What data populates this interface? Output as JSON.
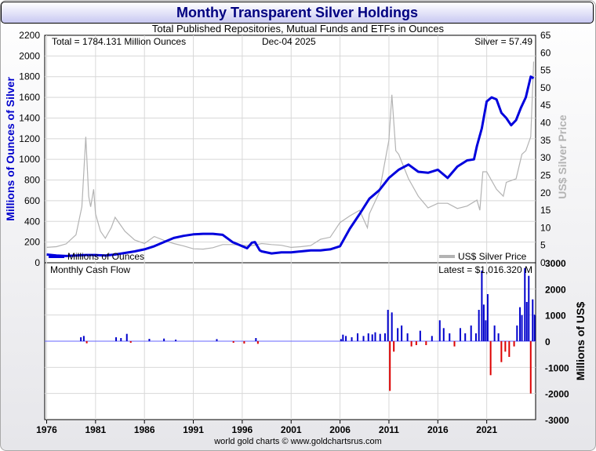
{
  "title": "Monthy Transparent Silver Holdings",
  "subtitle": "Total Published Repositories, Mutual Funds and ETFs in Ounces",
  "footer": "world gold charts © www.goldchartsrus.com",
  "top_panel": {
    "total_label": "Total = 1784.131 Million Ounces",
    "date_label": "Dec-04  2025",
    "price_label": "Silver = 57.49",
    "left_axis_label": "Millions of Ounces of Silver",
    "right_axis_label": "US$ Silver Price",
    "legend_holdings": "Millions of Ounces",
    "legend_price": "US$ Silver Price"
  },
  "bottom_panel": {
    "title": "Monthly Cash Flow",
    "latest_label": "Latest = $1,016.320 M",
    "right_axis_label": "Millions of US$"
  },
  "colors": {
    "holdings": "#0000dd",
    "price": "#b3b3b3",
    "inflow": "#0000cc",
    "outflow": "#dd0000",
    "title": "#000080"
  },
  "chart_data": [
    {
      "type": "line",
      "x_ticks": [
        "1976",
        "1981",
        "1986",
        "1991",
        "1996",
        "2001",
        "2006",
        "2011",
        "2016",
        "2021"
      ],
      "y_left_ticks": [
        0,
        200,
        400,
        600,
        800,
        1000,
        1200,
        1400,
        1600,
        1800,
        2000,
        2200
      ],
      "y_right_ticks": [
        0,
        5,
        10,
        15,
        20,
        25,
        30,
        35,
        40,
        45,
        50,
        55,
        60,
        65
      ],
      "ylim_left": [
        0,
        2200
      ],
      "ylim_right": [
        0,
        65
      ],
      "xlim": [
        1975.8,
        2026.0
      ],
      "series": [
        {
          "name": "Millions of Ounces",
          "axis": "left",
          "points": [
            [
              1976,
              80
            ],
            [
              1977,
              70
            ],
            [
              1978,
              65
            ],
            [
              1979,
              70
            ],
            [
              1980,
              75
            ],
            [
              1981,
              75
            ],
            [
              1982,
              70
            ],
            [
              1983,
              80
            ],
            [
              1984,
              95
            ],
            [
              1985,
              110
            ],
            [
              1986,
              130
            ],
            [
              1987,
              160
            ],
            [
              1988,
              200
            ],
            [
              1989,
              240
            ],
            [
              1990,
              260
            ],
            [
              1991,
              275
            ],
            [
              1992,
              280
            ],
            [
              1993,
              280
            ],
            [
              1994,
              270
            ],
            [
              1995,
              200
            ],
            [
              1995.5,
              180
            ],
            [
              1996,
              160
            ],
            [
              1996.5,
              140
            ],
            [
              1997,
              195
            ],
            [
              1997.3,
              200
            ],
            [
              1997.8,
              120
            ],
            [
              1998,
              110
            ],
            [
              1999,
              90
            ],
            [
              2000,
              100
            ],
            [
              2001,
              100
            ],
            [
              2002,
              110
            ],
            [
              2003,
              120
            ],
            [
              2004,
              120
            ],
            [
              2004.5,
              125
            ],
            [
              2005,
              130
            ],
            [
              2006,
              160
            ],
            [
              2007,
              330
            ],
            [
              2008,
              470
            ],
            [
              2009,
              620
            ],
            [
              2010,
              700
            ],
            [
              2011,
              820
            ],
            [
              2012,
              900
            ],
            [
              2013,
              950
            ],
            [
              2014,
              880
            ],
            [
              2015,
              870
            ],
            [
              2016,
              900
            ],
            [
              2017,
              820
            ],
            [
              2018,
              930
            ],
            [
              2019,
              990
            ],
            [
              2019.7,
              1000
            ],
            [
              2020,
              1130
            ],
            [
              2020.5,
              1300
            ],
            [
              2021,
              1560
            ],
            [
              2021.5,
              1600
            ],
            [
              2022,
              1580
            ],
            [
              2022.5,
              1450
            ],
            [
              2023,
              1400
            ],
            [
              2023.5,
              1330
            ],
            [
              2024,
              1380
            ],
            [
              2024.5,
              1500
            ],
            [
              2025,
              1600
            ],
            [
              2025.5,
              1800
            ],
            [
              2025.8,
              1784
            ]
          ]
        },
        {
          "name": "US$ Silver Price",
          "axis": "right",
          "points": [
            [
              1976,
              4.4
            ],
            [
              1977,
              4.6
            ],
            [
              1978,
              5.4
            ],
            [
              1979,
              8.0
            ],
            [
              1979.6,
              16
            ],
            [
              1980.0,
              36
            ],
            [
              1980.3,
              19
            ],
            [
              1980.5,
              16
            ],
            [
              1980.8,
              21
            ],
            [
              1981,
              14
            ],
            [
              1981.5,
              9
            ],
            [
              1982,
              7
            ],
            [
              1982.6,
              10
            ],
            [
              1983,
              13
            ],
            [
              1983.5,
              11
            ],
            [
              1984,
              9
            ],
            [
              1985,
              6.5
            ],
            [
              1986,
              5.5
            ],
            [
              1987,
              7.5
            ],
            [
              1988,
              6.4
            ],
            [
              1989,
              5.5
            ],
            [
              1990,
              4.8
            ],
            [
              1991,
              4.0
            ],
            [
              1992,
              3.9
            ],
            [
              1993,
              4.3
            ],
            [
              1994,
              5.2
            ],
            [
              1995,
              5.2
            ],
            [
              1996,
              5.0
            ],
            [
              1997,
              4.9
            ],
            [
              1998,
              5.5
            ],
            [
              1999,
              5.2
            ],
            [
              2000,
              5.0
            ],
            [
              2001,
              4.4
            ],
            [
              2002,
              4.6
            ],
            [
              2003,
              4.9
            ],
            [
              2004,
              6.7
            ],
            [
              2005,
              7.3
            ],
            [
              2006,
              11.5
            ],
            [
              2007,
              13.4
            ],
            [
              2008,
              15
            ],
            [
              2008.8,
              10
            ],
            [
              2009,
              14
            ],
            [
              2010,
              20
            ],
            [
              2011,
              35
            ],
            [
              2011.3,
              48
            ],
            [
              2011.7,
              32
            ],
            [
              2012,
              31
            ],
            [
              2013,
              24
            ],
            [
              2014,
              19
            ],
            [
              2015,
              15.7
            ],
            [
              2016,
              17
            ],
            [
              2017,
              17
            ],
            [
              2018,
              15.5
            ],
            [
              2019,
              16.2
            ],
            [
              2020.0,
              17.9
            ],
            [
              2020.3,
              15
            ],
            [
              2020.6,
              26
            ],
            [
              2021,
              26
            ],
            [
              2022,
              21
            ],
            [
              2022.7,
              19
            ],
            [
              2023,
              23
            ],
            [
              2024,
              24
            ],
            [
              2024.6,
              31
            ],
            [
              2025,
              32
            ],
            [
              2025.5,
              36
            ],
            [
              2025.8,
              57.49
            ]
          ]
        }
      ]
    },
    {
      "type": "bar",
      "title": "Monthly Cash Flow",
      "ylim": [
        -3000,
        3000
      ],
      "y_ticks": [
        3000,
        2000,
        1000,
        0,
        -1000,
        -2000,
        -3000
      ],
      "xlim": [
        1975.8,
        2026.0
      ],
      "x_ticks": [
        "1976",
        "1981",
        "1986",
        "1991",
        "1996",
        "2001",
        "2006",
        "2011",
        "2016",
        "2021"
      ],
      "bars": [
        [
          1979.5,
          150
        ],
        [
          1979.8,
          200
        ],
        [
          1980.1,
          -80
        ],
        [
          1983.1,
          150
        ],
        [
          1983.6,
          120
        ],
        [
          1984.2,
          280
        ],
        [
          1984.6,
          -60
        ],
        [
          1986.5,
          90
        ],
        [
          1988,
          100
        ],
        [
          1989.2,
          60
        ],
        [
          1993.4,
          80
        ],
        [
          1995.1,
          -60
        ],
        [
          1996.2,
          -90
        ],
        [
          1997.4,
          120
        ],
        [
          1997.6,
          -100
        ],
        [
          2006.1,
          80
        ],
        [
          2006.3,
          250
        ],
        [
          2006.6,
          200
        ],
        [
          2007.2,
          150
        ],
        [
          2007.8,
          300
        ],
        [
          2008.4,
          200
        ],
        [
          2008.9,
          300
        ],
        [
          2009.3,
          260
        ],
        [
          2009.6,
          340
        ],
        [
          2010.1,
          280
        ],
        [
          2010.6,
          300
        ],
        [
          2010.9,
          1200
        ],
        [
          2011.1,
          -1900
        ],
        [
          2011.3,
          1100
        ],
        [
          2011.5,
          -400
        ],
        [
          2011.9,
          500
        ],
        [
          2012.3,
          600
        ],
        [
          2012.9,
          300
        ],
        [
          2013.3,
          -200
        ],
        [
          2013.8,
          -150
        ],
        [
          2014.2,
          400
        ],
        [
          2014.8,
          -150
        ],
        [
          2015.4,
          200
        ],
        [
          2016.2,
          800
        ],
        [
          2016.6,
          500
        ],
        [
          2017.2,
          300
        ],
        [
          2017.7,
          -200
        ],
        [
          2018.3,
          500
        ],
        [
          2018.8,
          300
        ],
        [
          2019.4,
          600
        ],
        [
          2019.9,
          300
        ],
        [
          2020.2,
          1200
        ],
        [
          2020.5,
          2700
        ],
        [
          2020.7,
          1400
        ],
        [
          2020.9,
          800
        ],
        [
          2021.1,
          1800
        ],
        [
          2021.4,
          -1300
        ],
        [
          2021.8,
          600
        ],
        [
          2022.2,
          300
        ],
        [
          2022.5,
          -800
        ],
        [
          2022.9,
          -400
        ],
        [
          2023.3,
          -600
        ],
        [
          2023.8,
          -200
        ],
        [
          2024.1,
          600
        ],
        [
          2024.4,
          1300
        ],
        [
          2024.6,
          1000
        ],
        [
          2024.9,
          2800
        ],
        [
          2025.1,
          1500
        ],
        [
          2025.3,
          2500
        ],
        [
          2025.5,
          -2000
        ],
        [
          2025.7,
          1600
        ],
        [
          2025.9,
          1016
        ]
      ]
    }
  ]
}
